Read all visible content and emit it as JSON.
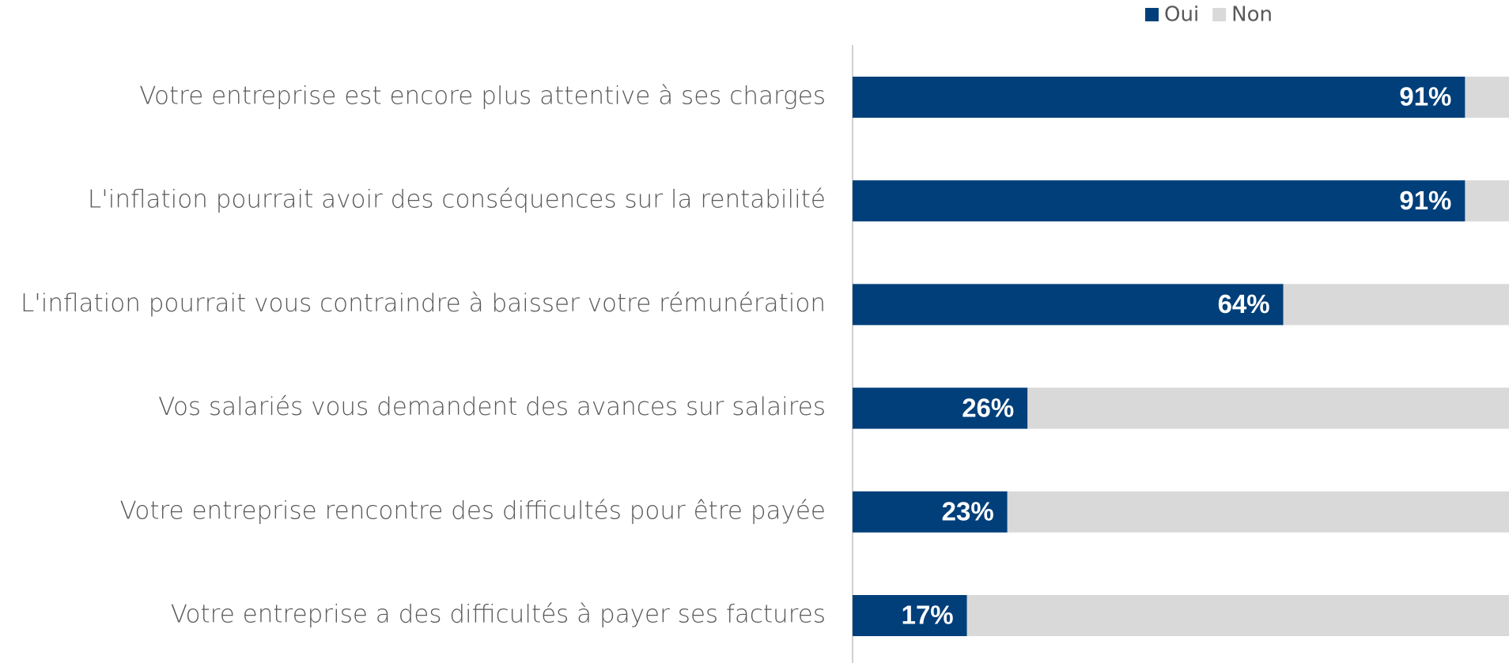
{
  "chart_data": {
    "type": "stacked_bar_horizontal",
    "categories": [
      "Votre entreprise est encore plus attentive à ses charges",
      "L'inflation pourrait avoir des conséquences sur la rentabilité",
      "L'inflation pourrait vous contraindre à baisser votre rémunération",
      "Vos salariés vous demandent des avances sur salaires",
      "Votre entreprise rencontre des difficultés pour être payée",
      "Votre entreprise a des difficultés à payer ses factures"
    ],
    "series": [
      {
        "name": "Oui",
        "color": "#003f7a",
        "values": [
          91,
          91,
          64,
          26,
          23,
          17
        ],
        "value_labels": [
          "91%",
          "91%",
          "64%",
          "26%",
          "23%",
          "17%"
        ]
      },
      {
        "name": "Non",
        "color": "#d9d9d9",
        "values": [
          9,
          9,
          36,
          74,
          77,
          83
        ]
      }
    ],
    "xlim": [
      0,
      100
    ],
    "legend": "top"
  }
}
